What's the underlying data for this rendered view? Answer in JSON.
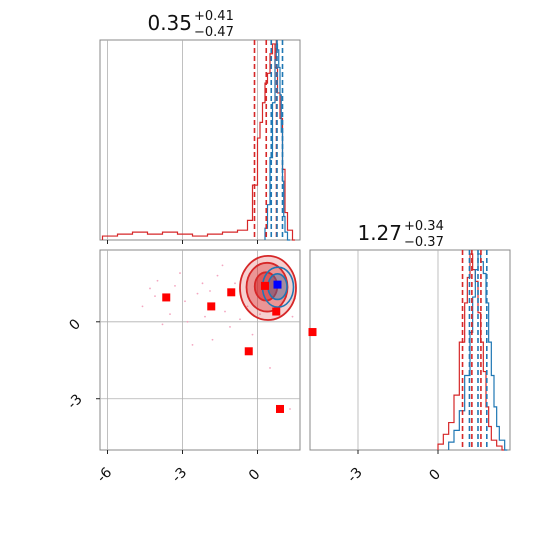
{
  "chart_data": {
    "type": "scatter",
    "title": "",
    "colors": {
      "red": "#d62728",
      "blue": "#1f77b4",
      "marker_red": "#ff0000",
      "marker_blue": "#0000ff"
    },
    "grid": true,
    "parameters": [
      {
        "title": {
          "median": "0.35",
          "plus": "+0.41",
          "minus": "−0.47"
        },
        "xlim": [
          -6.3,
          1.7
        ],
        "quantiles_red": [
          -0.12,
          0.35,
          0.76
        ],
        "quantiles_blue": [
          0.55,
          0.78,
          1.0
        ],
        "hist_red": {
          "bins": [
            -6.2,
            -5.6,
            -5.0,
            -4.4,
            -3.8,
            -3.2,
            -2.6,
            -2.0,
            -1.4,
            -0.8,
            -0.4,
            -0.2,
            0.0,
            0.1,
            0.2,
            0.3,
            0.4,
            0.5,
            0.6,
            0.7,
            0.8,
            0.9,
            1.0,
            1.1,
            1.2,
            1.4
          ],
          "counts": [
            2,
            3,
            4,
            3,
            4,
            3,
            2,
            3,
            4,
            5,
            10,
            28,
            52,
            60,
            70,
            80,
            85,
            95,
            100,
            88,
            75,
            62,
            36,
            14,
            5,
            0
          ]
        },
        "hist_blue": {
          "bins": [
            0.3,
            0.4,
            0.5,
            0.6,
            0.7,
            0.75,
            0.8,
            0.85,
            0.9,
            0.95,
            1.0,
            1.05,
            1.1,
            1.2
          ],
          "counts": [
            6,
            18,
            42,
            70,
            92,
            100,
            97,
            88,
            74,
            55,
            30,
            12,
            4,
            0
          ]
        }
      },
      {
        "title": {
          "median": "1.27",
          "plus": "+0.34",
          "minus": "−0.37"
        },
        "xlim": [
          -4.8,
          2.7
        ],
        "xticks": [
          -3,
          0
        ],
        "quantiles_red": [
          0.92,
          1.27,
          1.61
        ],
        "quantiles_blue": [
          1.18,
          1.5,
          1.83
        ],
        "hist_red": {
          "bins": [
            0.0,
            0.2,
            0.4,
            0.6,
            0.8,
            1.0,
            1.1,
            1.2,
            1.3,
            1.4,
            1.5,
            1.6,
            1.7,
            1.8,
            1.9,
            2.0,
            2.2,
            2.4
          ],
          "counts": [
            3,
            8,
            14,
            28,
            55,
            75,
            88,
            100,
            92,
            86,
            70,
            55,
            40,
            22,
            12,
            5,
            2,
            0
          ]
        },
        "hist_blue": {
          "bins": [
            0.4,
            0.6,
            0.8,
            1.0,
            1.2,
            1.3,
            1.4,
            1.5,
            1.6,
            1.7,
            1.8,
            1.9,
            2.0,
            2.1,
            2.2,
            2.3,
            2.5
          ],
          "counts": [
            4,
            10,
            20,
            38,
            60,
            78,
            92,
            100,
            96,
            90,
            75,
            55,
            38,
            22,
            12,
            5,
            0
          ]
        }
      }
    ],
    "joint": {
      "xlim": [
        -6.3,
        1.7
      ],
      "ylim": [
        -5.0,
        2.8
      ],
      "xticks": [
        -6,
        -3,
        0
      ],
      "yticks": [
        0,
        -3
      ],
      "contours_red": [
        {
          "cx": 0.42,
          "cy": 1.32,
          "rx": 1.12,
          "ry": 1.25
        },
        {
          "cx": 0.38,
          "cy": 1.35,
          "rx": 0.82,
          "ry": 0.95
        },
        {
          "cx": 0.34,
          "cy": 1.38,
          "rx": 0.45,
          "ry": 0.55
        }
      ],
      "contours_blue": [
        {
          "cx": 0.82,
          "cy": 1.35,
          "rx": 0.62,
          "ry": 0.78
        },
        {
          "cx": 0.8,
          "cy": 1.37,
          "rx": 0.38,
          "ry": 0.5
        }
      ],
      "markers_red": [
        [
          -3.65,
          0.95
        ],
        [
          -1.85,
          0.6
        ],
        [
          -1.05,
          1.15
        ],
        [
          0.3,
          1.4
        ],
        [
          0.75,
          0.4
        ],
        [
          -0.35,
          -1.15
        ],
        [
          2.2,
          -0.4
        ],
        [
          0.9,
          -3.4
        ]
      ],
      "marker_blue": [
        0.8,
        1.45
      ],
      "scatter_pink": [
        [
          -4.3,
          1.3
        ],
        [
          -4.0,
          1.6
        ],
        [
          -3.3,
          1.4
        ],
        [
          -2.9,
          0.8
        ],
        [
          -2.4,
          1.1
        ],
        [
          -2.1,
          0.2
        ],
        [
          -1.6,
          1.8
        ],
        [
          -1.3,
          0.4
        ],
        [
          -0.9,
          1.5
        ],
        [
          -0.7,
          0.1
        ],
        [
          -0.5,
          2.0
        ],
        [
          -2.6,
          -0.9
        ],
        [
          -1.1,
          -0.2
        ],
        [
          -3.1,
          1.9
        ],
        [
          -1.8,
          -0.7
        ],
        [
          -4.6,
          0.6
        ],
        [
          -3.8,
          -0.1
        ],
        [
          -0.2,
          -0.5
        ],
        [
          0.5,
          -1.8
        ],
        [
          1.3,
          -3.4
        ],
        [
          -2.2,
          1.5
        ],
        [
          -1.4,
          2.2
        ],
        [
          -3.5,
          0.3
        ],
        [
          0.1,
          0.3
        ],
        [
          1.4,
          0.2
        ],
        [
          1.5,
          0.9
        ],
        [
          -0.4,
          0.6
        ],
        [
          -2.8,
          0.0
        ],
        [
          -4.1,
          1.0
        ],
        [
          -1.9,
          1.2
        ]
      ]
    }
  }
}
